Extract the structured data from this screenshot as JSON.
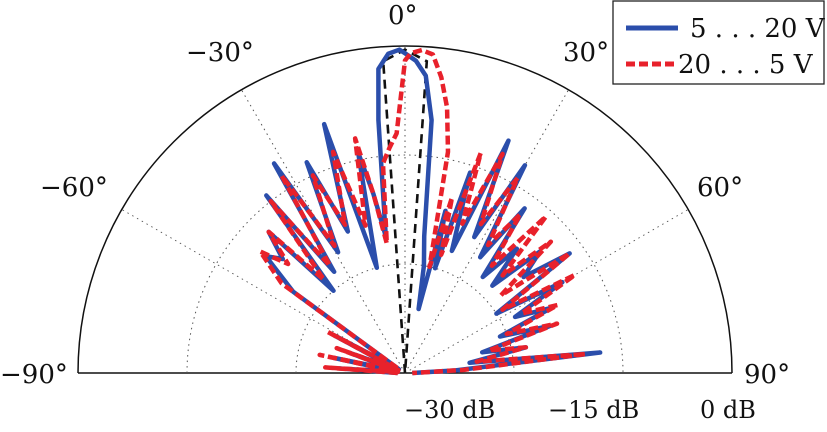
{
  "chart_data": {
    "type": "polar-line",
    "title": "",
    "angular_axis": {
      "range_deg": [
        -90,
        90
      ],
      "ticks": [
        -90,
        -60,
        -30,
        0,
        30,
        60,
        90
      ],
      "tick_labels": [
        "−90°",
        "−60°",
        "−30°",
        "0°",
        "30°",
        "60°",
        "90°"
      ]
    },
    "radial_axis": {
      "unit": "dB",
      "range": [
        -45,
        0
      ],
      "ticks": [
        -30,
        -15,
        0
      ],
      "tick_labels": [
        "−30 dB",
        "−15 dB",
        "0 dB"
      ]
    },
    "grid": true,
    "legend": {
      "position": "top-right"
    },
    "colors": {
      "series_1": "#2b4eab",
      "series_2": "#e8212b",
      "reference": "#111111"
    },
    "series": [
      {
        "name": "5 . . . 20 V",
        "style": "solid",
        "points": [
          [
            -90,
            -44
          ],
          [
            -86,
            -36
          ],
          [
            -82,
            -44
          ],
          [
            -78,
            -35
          ],
          [
            -74,
            -44
          ],
          [
            -70,
            -37
          ],
          [
            -66,
            -44
          ],
          [
            -62,
            -34
          ],
          [
            -58,
            -44
          ],
          [
            -54,
            -26
          ],
          [
            -50,
            -20
          ],
          [
            -47,
            -22
          ],
          [
            -44,
            -18
          ],
          [
            -41,
            -30
          ],
          [
            -38,
            -14
          ],
          [
            -35,
            -28
          ],
          [
            -32,
            -11
          ],
          [
            -29,
            -26
          ],
          [
            -25,
            -13
          ],
          [
            -22,
            -24
          ],
          [
            -18,
            -9
          ],
          [
            -15,
            -30
          ],
          [
            -12,
            -14
          ],
          [
            -10,
            -20
          ],
          [
            -8,
            -26
          ],
          [
            -6,
            -10
          ],
          [
            -5,
            -3
          ],
          [
            -3,
            -1
          ],
          [
            -1,
            -0.5
          ],
          [
            0,
            -1
          ],
          [
            2,
            -2
          ],
          [
            4,
            -4
          ],
          [
            6,
            -10
          ],
          [
            8,
            -26
          ],
          [
            10,
            -30
          ],
          [
            12,
            -36
          ],
          [
            14,
            -22
          ],
          [
            16,
            -30
          ],
          [
            18,
            -16
          ],
          [
            21,
            -27
          ],
          [
            24,
            -10
          ],
          [
            27,
            -24
          ],
          [
            30,
            -12
          ],
          [
            33,
            -26
          ],
          [
            36,
            -17
          ],
          [
            39,
            -28
          ],
          [
            42,
            -22
          ],
          [
            45,
            -28
          ],
          [
            48,
            -20
          ],
          [
            51,
            -24
          ],
          [
            54,
            -17
          ],
          [
            57,
            -30
          ],
          [
            60,
            -20
          ],
          [
            63,
            -28
          ],
          [
            66,
            -23
          ],
          [
            69,
            -31
          ],
          [
            72,
            -24
          ],
          [
            75,
            -34
          ],
          [
            78,
            -28
          ],
          [
            81,
            -36
          ],
          [
            84,
            -18
          ],
          [
            87,
            -38
          ],
          [
            90,
            -44
          ]
        ]
      },
      {
        "name": "20 . . . 5 V",
        "style": "dashed",
        "points": [
          [
            -90,
            -44
          ],
          [
            -86,
            -34
          ],
          [
            -82,
            -44
          ],
          [
            -78,
            -33
          ],
          [
            -74,
            -44
          ],
          [
            -70,
            -35
          ],
          [
            -66,
            -44
          ],
          [
            -62,
            -33
          ],
          [
            -58,
            -44
          ],
          [
            -54,
            -24
          ],
          [
            -50,
            -19
          ],
          [
            -47,
            -23
          ],
          [
            -44,
            -18
          ],
          [
            -41,
            -28
          ],
          [
            -38,
            -15
          ],
          [
            -35,
            -27
          ],
          [
            -32,
            -13
          ],
          [
            -29,
            -25
          ],
          [
            -25,
            -15
          ],
          [
            -22,
            -23
          ],
          [
            -18,
            -13
          ],
          [
            -15,
            -24
          ],
          [
            -12,
            -12
          ],
          [
            -10,
            -20
          ],
          [
            -8,
            -27
          ],
          [
            -6,
            -16
          ],
          [
            -4,
            -14
          ],
          [
            -2,
            -12
          ],
          [
            0,
            -2
          ],
          [
            1,
            -1
          ],
          [
            3,
            -0.5
          ],
          [
            5,
            -1
          ],
          [
            7,
            -4
          ],
          [
            9,
            -8
          ],
          [
            11,
            -14
          ],
          [
            13,
            -30
          ],
          [
            15,
            -20
          ],
          [
            17,
            -28
          ],
          [
            19,
            -13
          ],
          [
            21,
            -23
          ],
          [
            24,
            -12
          ],
          [
            27,
            -22
          ],
          [
            30,
            -14
          ],
          [
            33,
            -24
          ],
          [
            36,
            -18
          ],
          [
            39,
            -26
          ],
          [
            42,
            -16
          ],
          [
            45,
            -26
          ],
          [
            48,
            -18
          ],
          [
            51,
            -28
          ],
          [
            54,
            -17
          ],
          [
            57,
            -29
          ],
          [
            60,
            -18
          ],
          [
            63,
            -27
          ],
          [
            66,
            -22
          ],
          [
            69,
            -30
          ],
          [
            72,
            -23
          ],
          [
            75,
            -33
          ],
          [
            78,
            -28
          ],
          [
            81,
            -35
          ],
          [
            84,
            -20
          ],
          [
            87,
            -37
          ],
          [
            90,
            -44
          ]
        ]
      }
    ],
    "reference_beam": {
      "style": "black-dashed",
      "points": [
        [
          -6,
          -45
        ],
        [
          -4,
          -2
        ],
        [
          0,
          -0.5
        ],
        [
          4,
          -2
        ],
        [
          6,
          -45
        ]
      ]
    }
  },
  "legend": {
    "items": [
      {
        "label": "5 . . . 20 V"
      },
      {
        "label": "20 . . . 5 V"
      }
    ]
  },
  "angle_labels": {
    "m90": "−90°",
    "m60": "−60°",
    "m30": "−30°",
    "z0": "0°",
    "p30": "30°",
    "p60": "60°",
    "p90": "90°"
  },
  "radial_labels": {
    "r30": "−30 dB",
    "r15": "−15 dB",
    "r0": "0 dB"
  }
}
